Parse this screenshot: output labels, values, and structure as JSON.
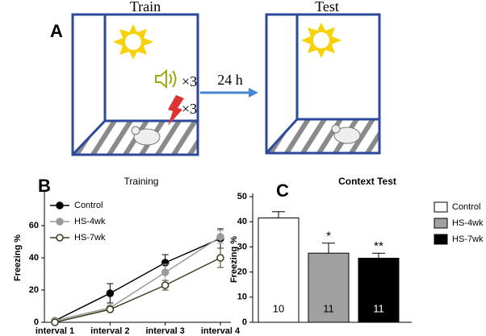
{
  "diagram": {
    "panel_label": "A",
    "train_title": "Train",
    "test_title": "Test",
    "delay": "24 h",
    "tone_count": "×3",
    "shock_count": "×3"
  },
  "chart_data": [
    {
      "type": "line",
      "panel_label": "B",
      "title": "Training",
      "y_label": "Freezing %",
      "categories": [
        "interval 1",
        "interval 2",
        "interval 3",
        "interval 4"
      ],
      "ylim": [
        0,
        80
      ],
      "yticks": [
        0,
        20,
        40,
        60
      ],
      "series": [
        {
          "name": "Control",
          "color": "#000000",
          "marker": "filled",
          "values": [
            1,
            18,
            37,
            52
          ],
          "errors": [
            1,
            6,
            5,
            6
          ]
        },
        {
          "name": "HS-4wk",
          "color": "#9a9a9a",
          "marker": "filled",
          "values": [
            1,
            9,
            31,
            53
          ],
          "errors": [
            1,
            1,
            5,
            4
          ]
        },
        {
          "name": "HS-7wk",
          "color": "#3d3d1e",
          "marker": "open",
          "values": [
            0,
            8,
            23,
            40
          ],
          "errors": [
            1,
            1,
            3,
            6
          ]
        }
      ]
    },
    {
      "type": "bar",
      "panel_label": "C",
      "title": "Context Test",
      "y_label": "Freezing %",
      "ylim": [
        0,
        50
      ],
      "yticks": [
        0,
        10,
        20,
        30,
        40,
        50
      ],
      "series": [
        {
          "name": "Control",
          "color": "#ffffff",
          "values": [
            41.5
          ],
          "errors": [
            2.5
          ],
          "n_label": "10"
        },
        {
          "name": "HS-4wk",
          "color": "#a0a0a0",
          "values": [
            27.5
          ],
          "errors": [
            4
          ],
          "n_label": "11",
          "significance": "*"
        },
        {
          "name": "HS-7wk",
          "color": "#000000",
          "values": [
            25.5
          ],
          "errors": [
            2
          ],
          "n_label": "11",
          "significance": "**"
        }
      ]
    }
  ]
}
